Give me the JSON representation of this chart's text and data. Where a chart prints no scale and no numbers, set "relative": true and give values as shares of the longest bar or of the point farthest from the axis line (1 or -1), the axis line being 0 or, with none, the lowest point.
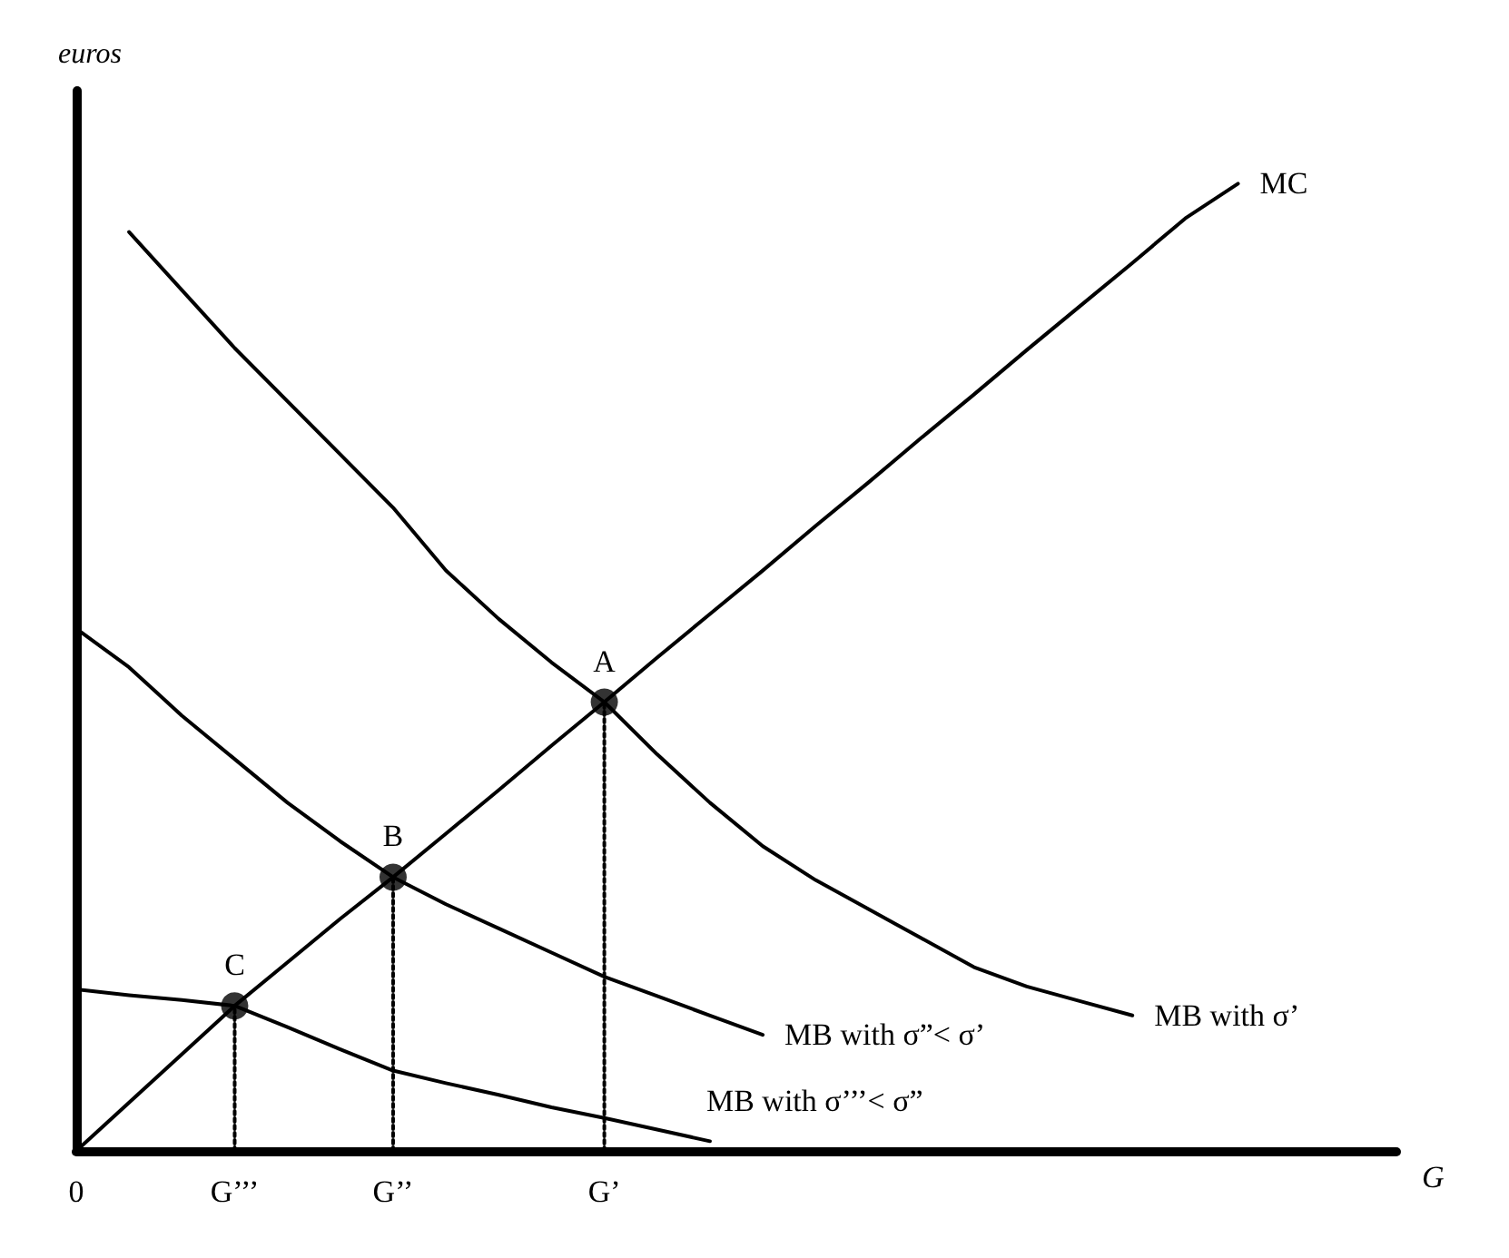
{
  "chart_data": {
    "type": "line",
    "relative": true,
    "xlabel": "G",
    "ylabel": "euros",
    "categories": [
      "0",
      null,
      null,
      "G’’’",
      null,
      null,
      "G’’",
      null,
      null,
      null,
      "G’",
      null,
      null,
      null,
      null,
      null,
      null,
      null,
      null,
      null,
      null,
      null,
      null,
      null,
      null,
      null
    ],
    "marker": "none",
    "line_style": "solid",
    "grid": false,
    "legend": false,
    "series": [
      {
        "name": "MC",
        "color": "#000000",
        "values": [
          0,
          0.05,
          0.1,
          0.15,
          0.195,
          0.24,
          0.283,
          0.328,
          0.373,
          0.419,
          0.464,
          0.51,
          0.555,
          0.6,
          0.646,
          0.691,
          0.737,
          0.782,
          0.828,
          0.873,
          0.918,
          0.964,
          1.0,
          null,
          null,
          null
        ]
      },
      {
        "name": "MB with σ’",
        "color": "#000000",
        "values": [
          null,
          0.95,
          0.89,
          0.83,
          0.775,
          0.72,
          0.665,
          0.6,
          0.55,
          0.505,
          0.464,
          0.41,
          0.36,
          0.315,
          0.28,
          0.25,
          0.22,
          0.19,
          0.17,
          0.155,
          0.14,
          null,
          null,
          null,
          null,
          null
        ]
      },
      {
        "name": "MB with σ”< σ’",
        "color": "#000000",
        "values": [
          0.54,
          0.5,
          0.45,
          0.405,
          0.36,
          0.32,
          0.283,
          0.255,
          0.23,
          0.205,
          0.18,
          0.16,
          0.14,
          0.12,
          null,
          null,
          null,
          null,
          null,
          null,
          null,
          null,
          null,
          null,
          null,
          null
        ]
      },
      {
        "name": "MB with σ’’’< σ”",
        "color": "#000000",
        "values": [
          0.167,
          0.161,
          0.156,
          0.15,
          0.128,
          0.105,
          0.083,
          0.07,
          0.058,
          0.045,
          0.034,
          0.022,
          0.01,
          null,
          null,
          null,
          null,
          null,
          null,
          null,
          null,
          null,
          null,
          null,
          null,
          null
        ]
      },
      {
        "type": "line",
        "line_style": "dotted",
        "color": "#000000",
        "x": [
          "G’’’",
          "G’’’"
        ],
        "values": [
          0,
          0.15
        ]
      },
      {
        "type": "line",
        "line_style": "dotted",
        "color": "#000000",
        "x": [
          "G’’",
          "G’’"
        ],
        "values": [
          0,
          0.283
        ]
      },
      {
        "type": "line",
        "line_style": "dotted",
        "color": "#000000",
        "x": [
          "G’",
          "G’"
        ],
        "values": [
          0,
          0.464
        ]
      },
      {
        "type": "scatter",
        "marker": "circle",
        "color": "#000000",
        "x": [
          "G’’’",
          "G’’",
          "G’"
        ],
        "values": [
          0.15,
          0.283,
          0.464
        ]
      }
    ],
    "annotations": [
      {
        "text": "A",
        "x": "G’",
        "y": 0.464
      },
      {
        "text": "B",
        "x": "G’’",
        "y": 0.283
      },
      {
        "text": "C",
        "x": "G’’’",
        "y": 0.15
      }
    ]
  }
}
